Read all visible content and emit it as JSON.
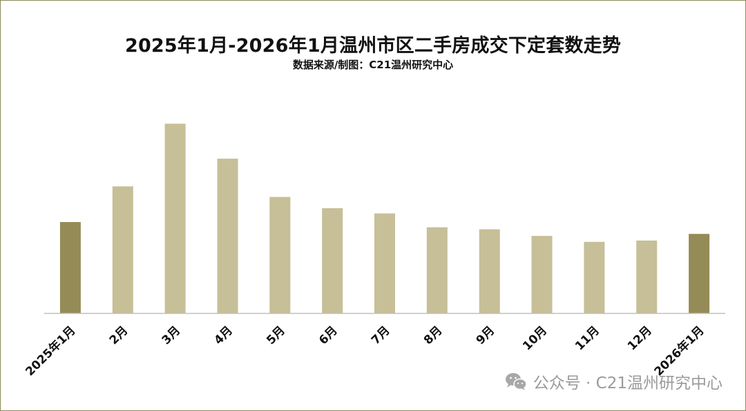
{
  "chart_data": {
    "type": "bar",
    "title": "2025年1月-2026年1月温州市区二手房成交下定套数走势",
    "subtitle": "数据来源/制图：C21温州研究中心",
    "categories": [
      "2025年1月",
      "2月",
      "3月",
      "4月",
      "5月",
      "6月",
      "7月",
      "8月",
      "9月",
      "10月",
      "11月",
      "12月",
      "2026年1月"
    ],
    "values": [
      138,
      192,
      287,
      234,
      176,
      159,
      151,
      130,
      127,
      117,
      108,
      110,
      120
    ],
    "ylim": [
      0,
      300
    ],
    "xlabel": "",
    "ylabel": "",
    "grid": false,
    "highlighted_categories": [
      "2025年1月",
      "2026年1月"
    ]
  },
  "colors": {
    "bar": "#c6bf97",
    "bar_highlight": "#958b56",
    "axis": "#bfbfbf",
    "frame": "#8a8a5a",
    "watermark": "#9a9a9a"
  },
  "watermark": {
    "icon": "wechat-icon",
    "text": "公众号 · C21温州研究中心"
  }
}
